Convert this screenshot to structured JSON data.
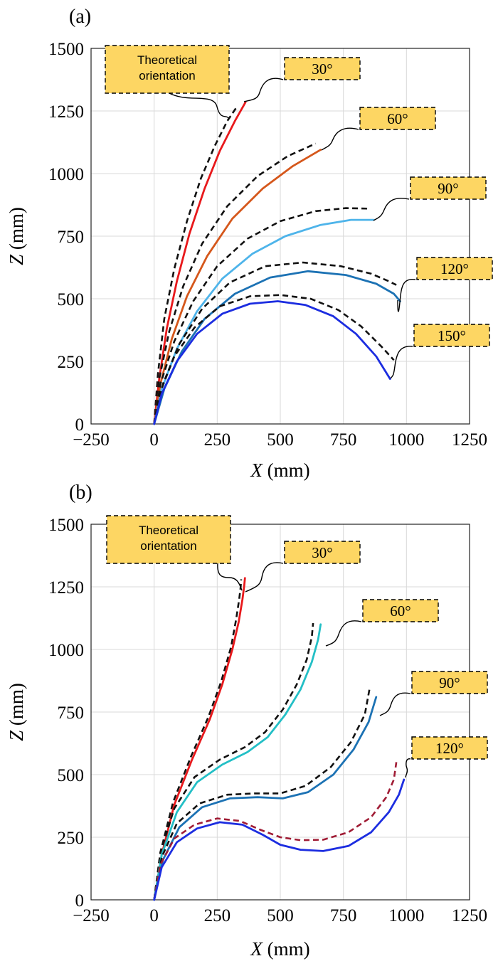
{
  "chart_data": [
    {
      "panel_label": "(a)",
      "type": "line",
      "xlabel": "X",
      "xunit": " (mm)",
      "ylabel": "Z",
      "yunit": " (mm)",
      "xlim": [
        -250,
        1250
      ],
      "ylim": [
        0,
        1500
      ],
      "xticks": [
        -250,
        0,
        250,
        500,
        750,
        1000,
        1250
      ],
      "yticks": [
        0,
        250,
        500,
        750,
        1000,
        1250,
        1500
      ],
      "xtick_labels": [
        "−250",
        "0",
        "250",
        "500",
        "750",
        "1000",
        "1250"
      ],
      "ytick_labels": [
        "0",
        "250",
        "500",
        "750",
        "1000",
        "1250",
        "1500"
      ],
      "grid": true,
      "theoretical_label": [
        "Theoretical",
        "orientation"
      ],
      "series": [
        {
          "name": "30°",
          "color": "#e8191c",
          "x": [
            0,
            20,
            50,
            90,
            140,
            200,
            260,
            320,
            362
          ],
          "y": [
            0,
            180,
            380,
            570,
            760,
            940,
            1090,
            1210,
            1285
          ],
          "dashed_x": [
            0,
            15,
            40,
            80,
            130,
            185,
            240,
            290,
            330
          ],
          "dashed_y": [
            0,
            200,
            420,
            620,
            810,
            980,
            1110,
            1210,
            1270
          ]
        },
        {
          "name": "60°",
          "color": "#d5571b",
          "x": [
            0,
            25,
            70,
            130,
            210,
            310,
            430,
            550,
            660
          ],
          "y": [
            0,
            160,
            340,
            510,
            670,
            820,
            940,
            1030,
            1095
          ],
          "dashed_x": [
            0,
            20,
            60,
            115,
            190,
            290,
            410,
            530,
            640
          ],
          "dashed_y": [
            0,
            180,
            370,
            550,
            720,
            870,
            990,
            1070,
            1120
          ]
        },
        {
          "name": "90°",
          "color": "#4eb4ea",
          "x": [
            0,
            30,
            90,
            170,
            270,
            390,
            520,
            660,
            780,
            870
          ],
          "y": [
            0,
            140,
            300,
            450,
            580,
            680,
            750,
            795,
            815,
            815
          ],
          "dashed_x": [
            0,
            25,
            80,
            155,
            250,
            370,
            500,
            640,
            760,
            850
          ],
          "dashed_y": [
            0,
            160,
            330,
            490,
            630,
            740,
            810,
            850,
            862,
            860
          ]
        },
        {
          "name": "120°",
          "color": "#1c72b4",
          "x": [
            0,
            40,
            110,
            200,
            320,
            460,
            610,
            760,
            880,
            950,
            975
          ],
          "y": [
            0,
            140,
            290,
            420,
            520,
            585,
            610,
            595,
            560,
            520,
            490
          ],
          "dashed_x": [
            0,
            35,
            100,
            190,
            300,
            440,
            590,
            740,
            860,
            930,
            960
          ],
          "dashed_y": [
            0,
            160,
            320,
            460,
            565,
            630,
            645,
            630,
            600,
            570,
            555
          ]
        },
        {
          "name": "150°",
          "color": "#1c2de0",
          "x": [
            0,
            30,
            90,
            170,
            270,
            380,
            490,
            600,
            710,
            800,
            880,
            935
          ],
          "y": [
            0,
            120,
            250,
            360,
            440,
            480,
            490,
            475,
            430,
            360,
            270,
            180
          ],
          "dashed_x": [
            0,
            25,
            80,
            160,
            260,
            380,
            500,
            620,
            730,
            820,
            900,
            950
          ],
          "dashed_y": [
            0,
            130,
            270,
            385,
            470,
            510,
            515,
            500,
            455,
            390,
            310,
            255
          ]
        }
      ]
    },
    {
      "panel_label": "(b)",
      "type": "line",
      "xlabel": "X",
      "xunit": " (mm)",
      "ylabel": "Z",
      "yunit": " (mm)",
      "xlim": [
        -250,
        1250
      ],
      "ylim": [
        0,
        1500
      ],
      "xticks": [
        -250,
        0,
        250,
        500,
        750,
        1000,
        1250
      ],
      "yticks": [
        0,
        250,
        500,
        750,
        1000,
        1250,
        1500
      ],
      "xtick_labels": [
        "−250",
        "0",
        "250",
        "500",
        "750",
        "1000",
        "1250"
      ],
      "ytick_labels": [
        "0",
        "250",
        "500",
        "750",
        "1000",
        "1250",
        "1500"
      ],
      "grid": true,
      "theoretical_label": [
        "Theoretical",
        "orientation"
      ],
      "series": [
        {
          "name": "30°",
          "color": "#e8191c",
          "x": [
            0,
            30,
            80,
            150,
            220,
            270,
            310,
            335,
            350,
            357,
            360
          ],
          "y": [
            0,
            180,
            380,
            560,
            720,
            860,
            1000,
            1110,
            1200,
            1255,
            1285
          ],
          "dashed_x": [
            0,
            25,
            75,
            145,
            215,
            265,
            305,
            325,
            337,
            343,
            345
          ],
          "dashed_y": [
            0,
            190,
            390,
            570,
            730,
            870,
            1010,
            1120,
            1200,
            1250,
            1280
          ]
        },
        {
          "name": "60°",
          "color": "#23bfc6",
          "x": [
            0,
            30,
            90,
            170,
            270,
            370,
            450,
            520,
            580,
            625,
            650,
            660
          ],
          "y": [
            0,
            180,
            350,
            470,
            540,
            590,
            650,
            740,
            840,
            950,
            1040,
            1100
          ],
          "dashed_x": [
            0,
            25,
            80,
            160,
            260,
            360,
            440,
            510,
            565,
            605,
            625,
            630
          ],
          "dashed_y": [
            0,
            190,
            365,
            490,
            560,
            610,
            670,
            760,
            860,
            960,
            1050,
            1105
          ]
        },
        {
          "name": "90°",
          "color": "#1c72b4",
          "x": [
            0,
            35,
            100,
            190,
            300,
            410,
            510,
            610,
            710,
            790,
            850,
            880
          ],
          "y": [
            0,
            160,
            290,
            370,
            405,
            410,
            405,
            430,
            500,
            600,
            710,
            810
          ],
          "dashed_x": [
            0,
            30,
            90,
            180,
            290,
            400,
            500,
            600,
            700,
            780,
            835,
            855
          ],
          "dashed_y": [
            0,
            170,
            305,
            385,
            420,
            425,
            425,
            455,
            530,
            630,
            740,
            850
          ]
        },
        {
          "name": "120°",
          "color": "#1c2de0",
          "x": [
            0,
            30,
            90,
            170,
            260,
            350,
            430,
            500,
            580,
            670,
            770,
            860,
            930,
            970,
            990
          ],
          "y": [
            0,
            130,
            230,
            285,
            310,
            300,
            260,
            220,
            200,
            195,
            215,
            270,
            350,
            420,
            480
          ],
          "dashed_color": "#a01c35",
          "dashed_x": [
            0,
            25,
            80,
            160,
            250,
            340,
            420,
            500,
            580,
            670,
            770,
            860,
            920,
            950,
            960
          ],
          "dashed_y": [
            0,
            140,
            245,
            300,
            325,
            315,
            280,
            250,
            238,
            240,
            270,
            330,
            410,
            480,
            550
          ]
        }
      ]
    }
  ]
}
